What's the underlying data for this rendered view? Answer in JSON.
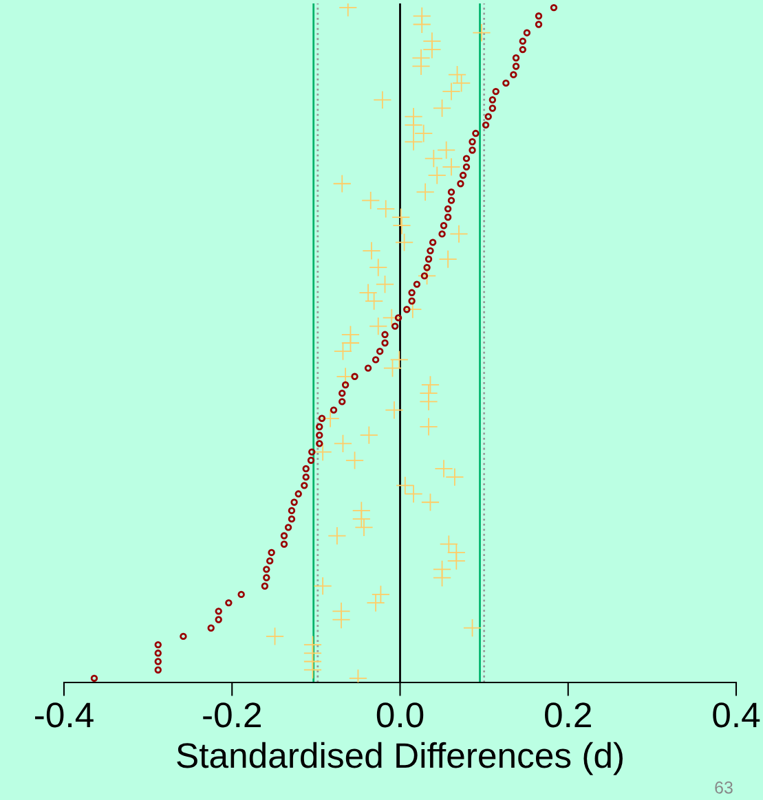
{
  "chart_data": {
    "type": "scatter",
    "orientation": "horizontal",
    "xlabel": "Standardised Differences (d)",
    "categories": [
      null,
      null,
      null,
      null,
      null,
      null,
      null,
      null,
      null,
      null,
      null,
      null,
      null,
      null,
      null,
      null,
      null,
      null,
      null,
      null,
      null,
      null,
      null,
      null,
      null,
      null,
      null,
      null,
      null,
      null,
      null,
      null,
      null,
      null,
      null,
      null,
      null,
      null,
      null,
      null,
      null,
      null,
      null,
      null,
      null,
      null,
      null,
      null,
      null,
      null,
      null,
      null,
      null,
      null,
      null,
      null,
      null,
      null,
      null,
      null,
      null,
      null,
      null,
      null,
      null,
      null,
      null,
      null,
      null,
      null,
      null,
      null,
      null,
      null,
      null,
      null,
      null,
      null,
      null,
      null,
      null
    ],
    "series": [
      {
        "color": "#ffcc66",
        "marker": "cross",
        "values": [
          -0.062,
          0.026,
          0.026,
          0.097,
          0.038,
          0.038,
          0.025,
          0.025,
          0.068,
          0.073,
          0.061,
          -0.021,
          0.05,
          0.016,
          0.016,
          0.028,
          0.016,
          0.055,
          0.04,
          0.061,
          0.044,
          -0.069,
          0.03,
          -0.035,
          -0.017,
          0.001,
          0.002,
          0.07,
          0.005,
          -0.034,
          0.057,
          -0.026,
          0.032,
          -0.018,
          -0.038,
          -0.031,
          0.015,
          -0.01,
          -0.026,
          -0.059,
          -0.059,
          -0.068,
          -0.001,
          -0.009,
          -0.065,
          0.036,
          0.034,
          0.034,
          -0.007,
          -0.083,
          0.034,
          -0.037,
          -0.068,
          -0.092,
          -0.054,
          0.052,
          0.065,
          0.006,
          0.016,
          0.036,
          -0.046,
          -0.046,
          -0.043,
          -0.075,
          0.058,
          0.067,
          0.067,
          0.05,
          0.05,
          -0.092,
          -0.023,
          -0.029,
          -0.07,
          -0.07,
          0.086,
          -0.149,
          -0.104,
          -0.104,
          -0.104,
          -0.104,
          -0.05
        ]
      },
      {
        "color": "#990000",
        "marker": "circle",
        "values": [
          0.183,
          0.165,
          0.165,
          0.151,
          0.146,
          0.146,
          0.138,
          0.138,
          0.135,
          0.126,
          0.114,
          0.11,
          0.11,
          0.105,
          0.102,
          0.09,
          0.086,
          0.086,
          0.079,
          0.079,
          0.075,
          0.072,
          0.061,
          0.061,
          0.057,
          0.057,
          0.052,
          0.05,
          0.039,
          0.036,
          0.034,
          0.032,
          0.029,
          0.02,
          0.014,
          0.014,
          0.008,
          -0.002,
          -0.006,
          -0.018,
          -0.018,
          -0.024,
          -0.029,
          -0.038,
          -0.054,
          -0.065,
          -0.069,
          -0.069,
          -0.079,
          -0.093,
          -0.096,
          -0.096,
          -0.096,
          -0.105,
          -0.106,
          -0.112,
          -0.112,
          -0.114,
          -0.121,
          -0.126,
          -0.129,
          -0.129,
          -0.133,
          -0.138,
          -0.138,
          -0.153,
          -0.155,
          -0.159,
          -0.159,
          -0.161,
          -0.189,
          -0.204,
          -0.216,
          -0.216,
          -0.225,
          -0.258,
          -0.288,
          -0.288,
          -0.288,
          -0.288,
          -0.364
        ]
      }
    ],
    "xlim": [
      -0.4,
      0.4
    ],
    "xticks": [
      {
        "value": -0.4,
        "label": "-0.4"
      },
      {
        "value": -0.2,
        "label": "-0.2"
      },
      {
        "value": 0,
        "label": "0.0"
      },
      0.2,
      0.4
    ],
    "ref_lines": [
      {
        "axis": "x",
        "value": 0,
        "color": "#000000",
        "line_style": "solid"
      },
      {
        "axis": "x",
        "value": -0.103,
        "color": "#00b36b",
        "line_style": "solid"
      },
      {
        "axis": "x",
        "value": 0.095,
        "color": "#00b36b",
        "line_style": "solid"
      },
      {
        "axis": "x",
        "value": -0.098,
        "color": "#999999",
        "line_style": "dotted"
      },
      {
        "axis": "x",
        "value": 0.1,
        "color": "#999999",
        "line_style": "dotted"
      }
    ],
    "grid": false,
    "legend": false,
    "tick_labels": "x",
    "annotations": [
      "63"
    ]
  }
}
